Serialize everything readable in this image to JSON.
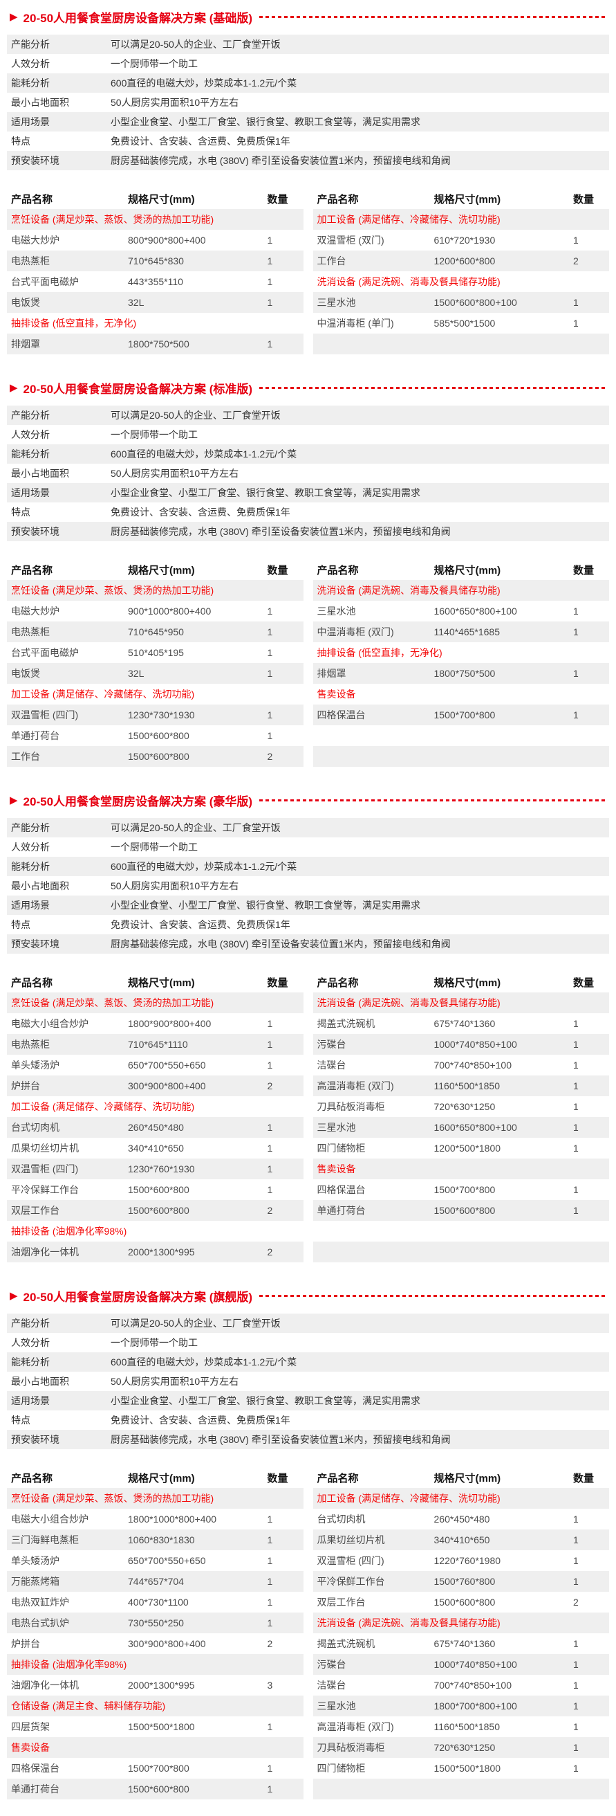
{
  "colors": {
    "accent_red": "#e60012",
    "category_red": "#f40b0b",
    "band_gray": "#efefef"
  },
  "sections": [
    {
      "title": "20-50人用餐食堂厨房设备解决方案 (基础版)",
      "analysis": [
        {
          "label": "产能分析",
          "value": "可以满足20-50人的企业、工厂食堂开饭"
        },
        {
          "label": "人效分析",
          "value": "一个厨师带一个助工"
        },
        {
          "label": "能耗分析",
          "value": "600直径的电磁大炒，炒菜成本1-1.2元/个菜"
        },
        {
          "label": "最小占地面积",
          "value": "50人厨房实用面积10平方左右"
        },
        {
          "label": "适用场景",
          "value": "小型企业食堂、小型工厂食堂、银行食堂、教职工食堂等，满足实用需求"
        },
        {
          "label": "特点",
          "value": "免费设计、含安装、含运费、免费质保1年"
        },
        {
          "label": "预安装环境",
          "value": "厨房基础装修完成，水电 (380V) 牵引至设备安装位置1米内，预留接电线和角阀"
        }
      ],
      "table_headers": {
        "name": "产品名称",
        "spec": "规格尺寸(mm)",
        "qty": "数量"
      },
      "left_rows": [
        {
          "type": "category",
          "text": "烹饪设备 (满足炒菜、蒸饭、煲汤的热加工功能)"
        },
        {
          "type": "item",
          "name": "电磁大炒炉",
          "spec": "800*900*800+400",
          "qty": "1"
        },
        {
          "type": "item",
          "name": "电热蒸柜",
          "spec": "710*645*830",
          "qty": "1"
        },
        {
          "type": "item",
          "name": "台式平面电磁炉",
          "spec": "443*355*110",
          "qty": "1"
        },
        {
          "type": "item",
          "name": "电饭煲",
          "spec": "32L",
          "qty": "1"
        },
        {
          "type": "category",
          "text": "抽排设备 (低空直排，无净化)"
        },
        {
          "type": "item",
          "name": "排烟罩",
          "spec": "1800*750*500",
          "qty": "1"
        }
      ],
      "right_rows": [
        {
          "type": "category",
          "text": "加工设备 (满足储存、冷藏储存、洗切功能)"
        },
        {
          "type": "item",
          "name": "双温雪柜 (双门)",
          "spec": "610*720*1930",
          "qty": "1"
        },
        {
          "type": "item",
          "name": "工作台",
          "spec": "1200*600*800",
          "qty": "2"
        },
        {
          "type": "category",
          "text": "洗消设备 (满足洗碗、消毒及餐具储存功能)"
        },
        {
          "type": "item",
          "name": "三星水池",
          "spec": "1500*600*800+100",
          "qty": "1"
        },
        {
          "type": "item",
          "name": "中温消毒柜 (单门)",
          "spec": "585*500*1500",
          "qty": "1"
        }
      ]
    },
    {
      "title": "20-50人用餐食堂厨房设备解决方案 (标准版)",
      "analysis": [
        {
          "label": "产能分析",
          "value": "可以满足20-50人的企业、工厂食堂开饭"
        },
        {
          "label": "人效分析",
          "value": "一个厨师带一个助工"
        },
        {
          "label": "能耗分析",
          "value": "600直径的电磁大炒，炒菜成本1-1.2元/个菜"
        },
        {
          "label": "最小占地面积",
          "value": "50人厨房实用面积10平方左右"
        },
        {
          "label": "适用场景",
          "value": "小型企业食堂、小型工厂食堂、银行食堂、教职工食堂等，满足实用需求"
        },
        {
          "label": "特点",
          "value": "免费设计、含安装、含运费、免费质保1年"
        },
        {
          "label": "预安装环境",
          "value": "厨房基础装修完成，水电 (380V) 牵引至设备安装位置1米内，预留接电线和角阀"
        }
      ],
      "table_headers": {
        "name": "产品名称",
        "spec": "规格尺寸(mm)",
        "qty": "数量"
      },
      "left_rows": [
        {
          "type": "category",
          "text": "烹饪设备 (满足炒菜、蒸饭、煲汤的热加工功能)"
        },
        {
          "type": "item",
          "name": "电磁大炒炉",
          "spec": "900*1000*800+400",
          "qty": "1"
        },
        {
          "type": "item",
          "name": "电热蒸柜",
          "spec": "710*645*950",
          "qty": "1"
        },
        {
          "type": "item",
          "name": "台式平面电磁炉",
          "spec": "510*405*195",
          "qty": "1"
        },
        {
          "type": "item",
          "name": "电饭煲",
          "spec": "32L",
          "qty": "1"
        },
        {
          "type": "category",
          "text": "加工设备 (满足储存、冷藏储存、洗切功能)"
        },
        {
          "type": "item",
          "name": "双温雪柜 (四门)",
          "spec": "1230*730*1930",
          "qty": "1"
        },
        {
          "type": "item",
          "name": "单通打荷台",
          "spec": "1500*600*800",
          "qty": "1"
        },
        {
          "type": "item",
          "name": "工作台",
          "spec": "1500*600*800",
          "qty": "2"
        }
      ],
      "right_rows": [
        {
          "type": "category",
          "text": "洗消设备 (满足洗碗、消毒及餐具储存功能)"
        },
        {
          "type": "item",
          "name": "三星水池",
          "spec": "1600*650*800+100",
          "qty": "1"
        },
        {
          "type": "item",
          "name": "中温消毒柜 (双门)",
          "spec": "1140*465*1685",
          "qty": "1"
        },
        {
          "type": "category",
          "text": "抽排设备 (低空直排，无净化)"
        },
        {
          "type": "item",
          "name": "排烟罩",
          "spec": "1800*750*500",
          "qty": "1"
        },
        {
          "type": "category",
          "text": "售卖设备"
        },
        {
          "type": "item",
          "name": "四格保温台",
          "spec": "1500*700*800",
          "qty": "1"
        }
      ]
    },
    {
      "title": "20-50人用餐食堂厨房设备解决方案 (豪华版)",
      "analysis": [
        {
          "label": "产能分析",
          "value": "可以满足20-50人的企业、工厂食堂开饭"
        },
        {
          "label": "人效分析",
          "value": "一个厨师带一个助工"
        },
        {
          "label": "能耗分析",
          "value": "600直径的电磁大炒，炒菜成本1-1.2元/个菜"
        },
        {
          "label": "最小占地面积",
          "value": "50人厨房实用面积10平方左右"
        },
        {
          "label": "适用场景",
          "value": "小型企业食堂、小型工厂食堂、银行食堂、教职工食堂等，满足实用需求"
        },
        {
          "label": "特点",
          "value": "免费设计、含安装、含运费、免费质保1年"
        },
        {
          "label": "预安装环境",
          "value": "厨房基础装修完成，水电 (380V) 牵引至设备安装位置1米内，预留接电线和角阀"
        }
      ],
      "table_headers": {
        "name": "产品名称",
        "spec": "规格尺寸(mm)",
        "qty": "数量"
      },
      "left_rows": [
        {
          "type": "category",
          "text": "烹饪设备 (满足炒菜、蒸饭、煲汤的热加工功能)"
        },
        {
          "type": "item",
          "name": "电磁大小组合炒炉",
          "spec": "1800*900*800+400",
          "qty": "1"
        },
        {
          "type": "item",
          "name": "电热蒸柜",
          "spec": "710*645*1110",
          "qty": "1"
        },
        {
          "type": "item",
          "name": "单头矮汤炉",
          "spec": "650*700*550+650",
          "qty": "1"
        },
        {
          "type": "item",
          "name": "炉拼台",
          "spec": "300*900*800+400",
          "qty": "2"
        },
        {
          "type": "category",
          "text": "加工设备 (满足储存、冷藏储存、洗切功能)"
        },
        {
          "type": "item",
          "name": "台式切肉机",
          "spec": "260*450*480",
          "qty": "1"
        },
        {
          "type": "item",
          "name": "瓜果切丝切片机",
          "spec": "340*410*650",
          "qty": "1"
        },
        {
          "type": "item",
          "name": "双温雪柜 (四门)",
          "spec": "1230*760*1930",
          "qty": "1"
        },
        {
          "type": "item",
          "name": "平冷保鲜工作台",
          "spec": "1500*600*800",
          "qty": "1"
        },
        {
          "type": "item",
          "name": "双层工作台",
          "spec": "1500*600*800",
          "qty": "2"
        },
        {
          "type": "category",
          "text": "抽排设备 (油烟净化率98%)"
        },
        {
          "type": "item",
          "name": "油烟净化一体机",
          "spec": "2000*1300*995",
          "qty": "2"
        }
      ],
      "right_rows": [
        {
          "type": "category",
          "text": "洗消设备 (满足洗碗、消毒及餐具储存功能)"
        },
        {
          "type": "item",
          "name": "揭盖式洗碗机",
          "spec": "675*740*1360",
          "qty": "1"
        },
        {
          "type": "item",
          "name": "污碟台",
          "spec": "1000*740*850+100",
          "qty": "1"
        },
        {
          "type": "item",
          "name": "洁碟台",
          "spec": "700*740*850+100",
          "qty": "1"
        },
        {
          "type": "item",
          "name": "高温消毒柜 (双门)",
          "spec": "1160*500*1850",
          "qty": "1"
        },
        {
          "type": "item",
          "name": "刀具砧板消毒柜",
          "spec": "720*630*1250",
          "qty": "1"
        },
        {
          "type": "item",
          "name": "三星水池",
          "spec": "1600*650*800+100",
          "qty": "1"
        },
        {
          "type": "item",
          "name": "四门储物柜",
          "spec": "1200*500*1800",
          "qty": "1"
        },
        {
          "type": "category",
          "text": "售卖设备"
        },
        {
          "type": "item",
          "name": "四格保温台",
          "spec": "1500*700*800",
          "qty": "1"
        },
        {
          "type": "item",
          "name": "单通打荷台",
          "spec": "1500*600*800",
          "qty": "1"
        }
      ]
    },
    {
      "title": "20-50人用餐食堂厨房设备解决方案 (旗舰版)",
      "analysis": [
        {
          "label": "产能分析",
          "value": "可以满足20-50人的企业、工厂食堂开饭"
        },
        {
          "label": "人效分析",
          "value": "一个厨师带一个助工"
        },
        {
          "label": "能耗分析",
          "value": "600直径的电磁大炒，炒菜成本1-1.2元/个菜"
        },
        {
          "label": "最小占地面积",
          "value": "50人厨房实用面积10平方左右"
        },
        {
          "label": "适用场景",
          "value": "小型企业食堂、小型工厂食堂、银行食堂、教职工食堂等，满足实用需求"
        },
        {
          "label": "特点",
          "value": "免费设计、含安装、含运费、免费质保1年"
        },
        {
          "label": "预安装环境",
          "value": "厨房基础装修完成，水电 (380V) 牵引至设备安装位置1米内，预留接电线和角阀"
        }
      ],
      "table_headers": {
        "name": "产品名称",
        "spec": "规格尺寸(mm)",
        "qty": "数量"
      },
      "left_rows": [
        {
          "type": "category",
          "text": "烹饪设备 (满足炒菜、蒸饭、煲汤的热加工功能)"
        },
        {
          "type": "item",
          "name": "电磁大小组合炒炉",
          "spec": "1800*1000*800+400",
          "qty": "1"
        },
        {
          "type": "item",
          "name": "三门海鲜电蒸柜",
          "spec": "1060*830*1830",
          "qty": "1"
        },
        {
          "type": "item",
          "name": "单头矮汤炉",
          "spec": "650*700*550+650",
          "qty": "1"
        },
        {
          "type": "item",
          "name": "万能蒸烤箱",
          "spec": "744*657*704",
          "qty": "1"
        },
        {
          "type": "item",
          "name": "电热双缸炸炉",
          "spec": "400*730*1100",
          "qty": "1"
        },
        {
          "type": "item",
          "name": "电热台式扒炉",
          "spec": "730*550*250",
          "qty": "1"
        },
        {
          "type": "item",
          "name": "炉拼台",
          "spec": "300*900*800+400",
          "qty": "2"
        },
        {
          "type": "category",
          "text": "抽排设备 (油烟净化率98%)"
        },
        {
          "type": "item",
          "name": "油烟净化一体机",
          "spec": "2000*1300*995",
          "qty": "3"
        },
        {
          "type": "category",
          "text": "仓储设备 (满足主食、辅料储存功能)"
        },
        {
          "type": "item",
          "name": "四层货架",
          "spec": "1500*500*1800",
          "qty": "1"
        },
        {
          "type": "category",
          "text": "售卖设备"
        },
        {
          "type": "item",
          "name": "四格保温台",
          "spec": "1500*700*800",
          "qty": "1"
        },
        {
          "type": "item",
          "name": "单通打荷台",
          "spec": "1500*600*800",
          "qty": "1"
        }
      ],
      "right_rows": [
        {
          "type": "category",
          "text": "加工设备 (满足储存、冷藏储存、洗切功能)"
        },
        {
          "type": "item",
          "name": "台式切肉机",
          "spec": "260*450*480",
          "qty": "1"
        },
        {
          "type": "item",
          "name": "瓜果切丝切片机",
          "spec": "340*410*650",
          "qty": "1"
        },
        {
          "type": "item",
          "name": "双温雪柜 (四门)",
          "spec": "1220*760*1980",
          "qty": "1"
        },
        {
          "type": "item",
          "name": "平冷保鲜工作台",
          "spec": "1500*760*800",
          "qty": "1"
        },
        {
          "type": "item",
          "name": "双层工作台",
          "spec": "1500*600*800",
          "qty": "2"
        },
        {
          "type": "category",
          "text": "洗消设备 (满足洗碗、消毒及餐具储存功能)"
        },
        {
          "type": "item",
          "name": "揭盖式洗碗机",
          "spec": "675*740*1360",
          "qty": "1"
        },
        {
          "type": "item",
          "name": "污碟台",
          "spec": "1000*740*850+100",
          "qty": "1"
        },
        {
          "type": "item",
          "name": "洁碟台",
          "spec": "700*740*850+100",
          "qty": "1"
        },
        {
          "type": "item",
          "name": "三星水池",
          "spec": "1800*700*800+100",
          "qty": "1"
        },
        {
          "type": "item",
          "name": "高温消毒柜 (双门)",
          "spec": "1160*500*1850",
          "qty": "1"
        },
        {
          "type": "item",
          "name": "刀具砧板消毒柜",
          "spec": "720*630*1250",
          "qty": "1"
        },
        {
          "type": "item",
          "name": "四门储物柜",
          "spec": "1500*500*1800",
          "qty": "1"
        }
      ]
    }
  ]
}
